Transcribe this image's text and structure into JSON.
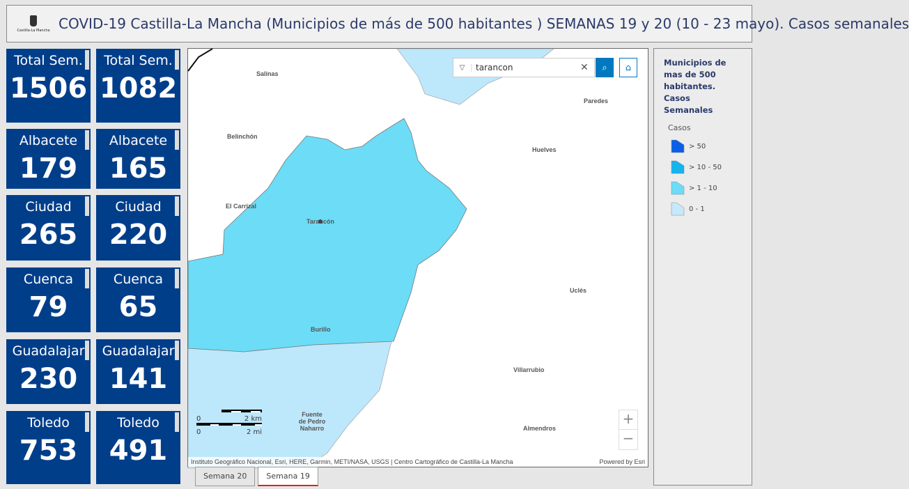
{
  "header": {
    "title": "COVID-19 Castilla-La Mancha (Municipios de más de 500 habitantes ) SEMANAS 19 y 20 (10 - 23 mayo). Casos semanales",
    "logo_text": "Castilla-La Mancha"
  },
  "tiles": [
    {
      "label": "Total Sem.",
      "value": "1506"
    },
    {
      "label": "Total Sem.",
      "value": "1082"
    },
    {
      "label": "Albacete",
      "value": "179"
    },
    {
      "label": "Albacete",
      "value": "165"
    },
    {
      "label": "Ciudad",
      "value": "265"
    },
    {
      "label": "Ciudad",
      "value": "220"
    },
    {
      "label": "Cuenca",
      "value": "79"
    },
    {
      "label": "Cuenca",
      "value": "65"
    },
    {
      "label": "Guadalajar",
      "value": "230"
    },
    {
      "label": "Guadalajar",
      "value": "141"
    },
    {
      "label": "Toledo",
      "value": "753"
    },
    {
      "label": "Toledo",
      "value": "491"
    }
  ],
  "map": {
    "search_value": "tarancon",
    "places": [
      "Salinas",
      "Paredes",
      "Belinchón",
      "Huelves",
      "El Carrizal",
      "Tarancón",
      "Uclés",
      "Burillo",
      "Villarrubio",
      "Fuente de Pedro Naharro",
      "Almendros"
    ],
    "scale": {
      "km": "2 km",
      "mi": "2 mi",
      "zero": "0"
    },
    "zoom_in": "+",
    "zoom_out": "−",
    "attribution": "Instituto Geográfico Nacional, Esri, HERE, Garmin, METI/NASA, USGS | Centro Cartográfico de Castilla-La Mancha",
    "powered": "Powered by Esri",
    "colors": {
      "class_10_50": "#6cdcf7",
      "class_0_1": "#bde7fb"
    }
  },
  "tabs": [
    {
      "label": "Semana 20",
      "active": false
    },
    {
      "label": "Semana 19",
      "active": true
    }
  ],
  "legend": {
    "title": "Municipios de mas de 500 habitantes. Casos Semanales",
    "field": "Casos",
    "items": [
      {
        "label": "> 50",
        "color": "#0a5fe6"
      },
      {
        "label": "> 10 - 50",
        "color": "#14b4ee"
      },
      {
        "label": "> 1 - 10",
        "color": "#6cdcf7"
      },
      {
        "label": "0 - 1",
        "color": "#c5e9fb"
      }
    ]
  }
}
